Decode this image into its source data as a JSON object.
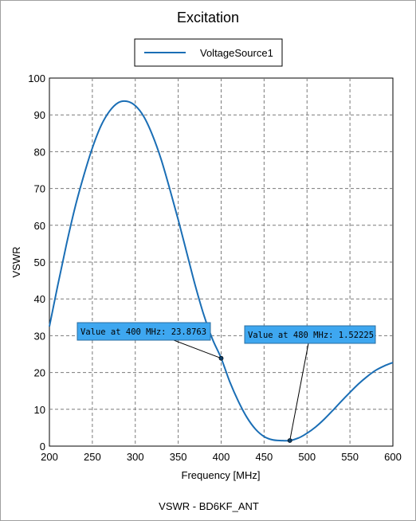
{
  "chart_data": {
    "type": "line",
    "title": "Excitation",
    "xlabel": "Frequency [MHz]",
    "ylabel": "VSWR",
    "footer": "VSWR - BD6KF_ANT",
    "xlim": [
      200,
      600
    ],
    "ylim": [
      0,
      100
    ],
    "x_ticks": [
      200,
      250,
      300,
      350,
      400,
      450,
      500,
      550,
      600
    ],
    "y_ticks": [
      0,
      10,
      20,
      30,
      40,
      50,
      60,
      70,
      80,
      90,
      100
    ],
    "grid": true,
    "legend_position": "top-center",
    "series_color": "#1a6eb5",
    "series": [
      {
        "name": "VoltageSource1",
        "x": [
          200,
          210,
          220,
          230,
          240,
          250,
          260,
          270,
          280,
          290,
          300,
          310,
          320,
          330,
          340,
          350,
          360,
          370,
          380,
          390,
          400,
          410,
          420,
          430,
          440,
          450,
          460,
          470,
          480,
          490,
          500,
          510,
          520,
          530,
          540,
          550,
          560,
          570,
          580,
          590,
          600
        ],
        "y": [
          32.5,
          44,
          55,
          65,
          73.5,
          81,
          87,
          91,
          93.3,
          93.7,
          92.5,
          89.5,
          84.5,
          78,
          70,
          61.5,
          52.5,
          43.5,
          35.5,
          29,
          23.9,
          17.5,
          12.2,
          7.8,
          4.6,
          2.6,
          1.7,
          1.5,
          1.52,
          2.2,
          3.5,
          5.2,
          7.3,
          9.7,
          12.2,
          14.6,
          16.9,
          18.9,
          20.6,
          21.8,
          22.7
        ]
      }
    ],
    "annotations": [
      {
        "x": 400,
        "y": 23.8763,
        "text": "Value at 400 MHz: 23.8763"
      },
      {
        "x": 480,
        "y": 1.52225,
        "text": "Value at 480 MHz: 1.52225"
      }
    ]
  }
}
